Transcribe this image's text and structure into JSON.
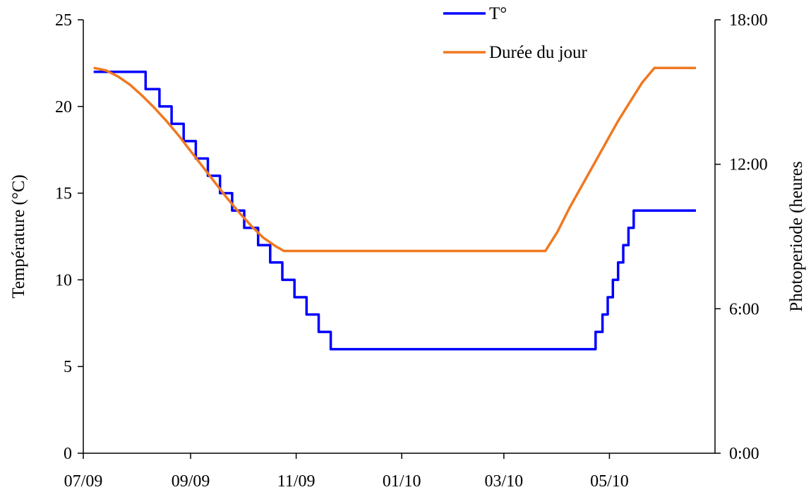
{
  "chart_data": {
    "type": "line",
    "xlabel": "",
    "ylabel": "Température (°C)",
    "y2label": "Photoperiode (heures",
    "ylim": [
      0,
      25
    ],
    "yticks": [
      0,
      5,
      10,
      15,
      20,
      25
    ],
    "y2lim_hours": [
      0,
      18
    ],
    "y2ticks": [
      "0:00",
      "6:00",
      "12:00",
      "18:00"
    ],
    "xlim": [
      "2009-07-01",
      "2010-07-01"
    ],
    "xticks": [
      {
        "date": "2009-07-01",
        "label": "07/09"
      },
      {
        "date": "2009-09-01",
        "label": "09/09"
      },
      {
        "date": "2009-11-01",
        "label": "11/09"
      },
      {
        "date": "2010-01-01",
        "label": "01/10"
      },
      {
        "date": "2010-03-01",
        "label": "03/10"
      },
      {
        "date": "2010-05-01",
        "label": "05/10"
      }
    ],
    "grid": false,
    "legend_position": "top-right",
    "series": [
      {
        "name": "T°",
        "color": "#0000ff",
        "axis": "left",
        "step": true,
        "points": [
          [
            "2009-07-07",
            22
          ],
          [
            "2009-08-06",
            21
          ],
          [
            "2009-08-14",
            20
          ],
          [
            "2009-08-21",
            19
          ],
          [
            "2009-08-28",
            18
          ],
          [
            "2009-09-04",
            17
          ],
          [
            "2009-09-11",
            16
          ],
          [
            "2009-09-18",
            15
          ],
          [
            "2009-09-25",
            14
          ],
          [
            "2009-10-02",
            13
          ],
          [
            "2009-10-10",
            12
          ],
          [
            "2009-10-17",
            11
          ],
          [
            "2009-10-24",
            10
          ],
          [
            "2009-10-31",
            9
          ],
          [
            "2009-11-07",
            8
          ],
          [
            "2009-11-14",
            7
          ],
          [
            "2009-11-21",
            6
          ],
          [
            "2010-04-23",
            7
          ],
          [
            "2010-04-27",
            8
          ],
          [
            "2010-04-30",
            9
          ],
          [
            "2010-05-03",
            10
          ],
          [
            "2010-05-06",
            11
          ],
          [
            "2010-05-09",
            12
          ],
          [
            "2010-05-12",
            13
          ],
          [
            "2010-05-15",
            14
          ],
          [
            "2010-06-20",
            14
          ]
        ]
      },
      {
        "name": "Durée du jour",
        "color": "#f07820",
        "axis": "right",
        "step": false,
        "points": [
          [
            "2009-07-07",
            16.0
          ],
          [
            "2009-07-14",
            15.9
          ],
          [
            "2009-07-21",
            15.65
          ],
          [
            "2009-07-28",
            15.3
          ],
          [
            "2009-08-04",
            14.85
          ],
          [
            "2009-08-11",
            14.35
          ],
          [
            "2009-08-18",
            13.8
          ],
          [
            "2009-08-25",
            13.2
          ],
          [
            "2009-09-01",
            12.55
          ],
          [
            "2009-09-08",
            11.9
          ],
          [
            "2009-09-15",
            11.25
          ],
          [
            "2009-09-22",
            10.6
          ],
          [
            "2009-09-29",
            10.0
          ],
          [
            "2009-10-06",
            9.45
          ],
          [
            "2009-10-13",
            8.95
          ],
          [
            "2009-10-20",
            8.6
          ],
          [
            "2009-10-25",
            8.4
          ],
          [
            "2010-03-25",
            8.4
          ],
          [
            "2010-04-01",
            9.2
          ],
          [
            "2010-04-08",
            10.2
          ],
          [
            "2010-04-15",
            11.1
          ],
          [
            "2010-04-22",
            12.0
          ],
          [
            "2010-04-29",
            12.9
          ],
          [
            "2010-05-06",
            13.8
          ],
          [
            "2010-05-13",
            14.6
          ],
          [
            "2010-05-20",
            15.4
          ],
          [
            "2010-05-27",
            16.0
          ],
          [
            "2010-06-20",
            16.0
          ]
        ]
      }
    ]
  }
}
